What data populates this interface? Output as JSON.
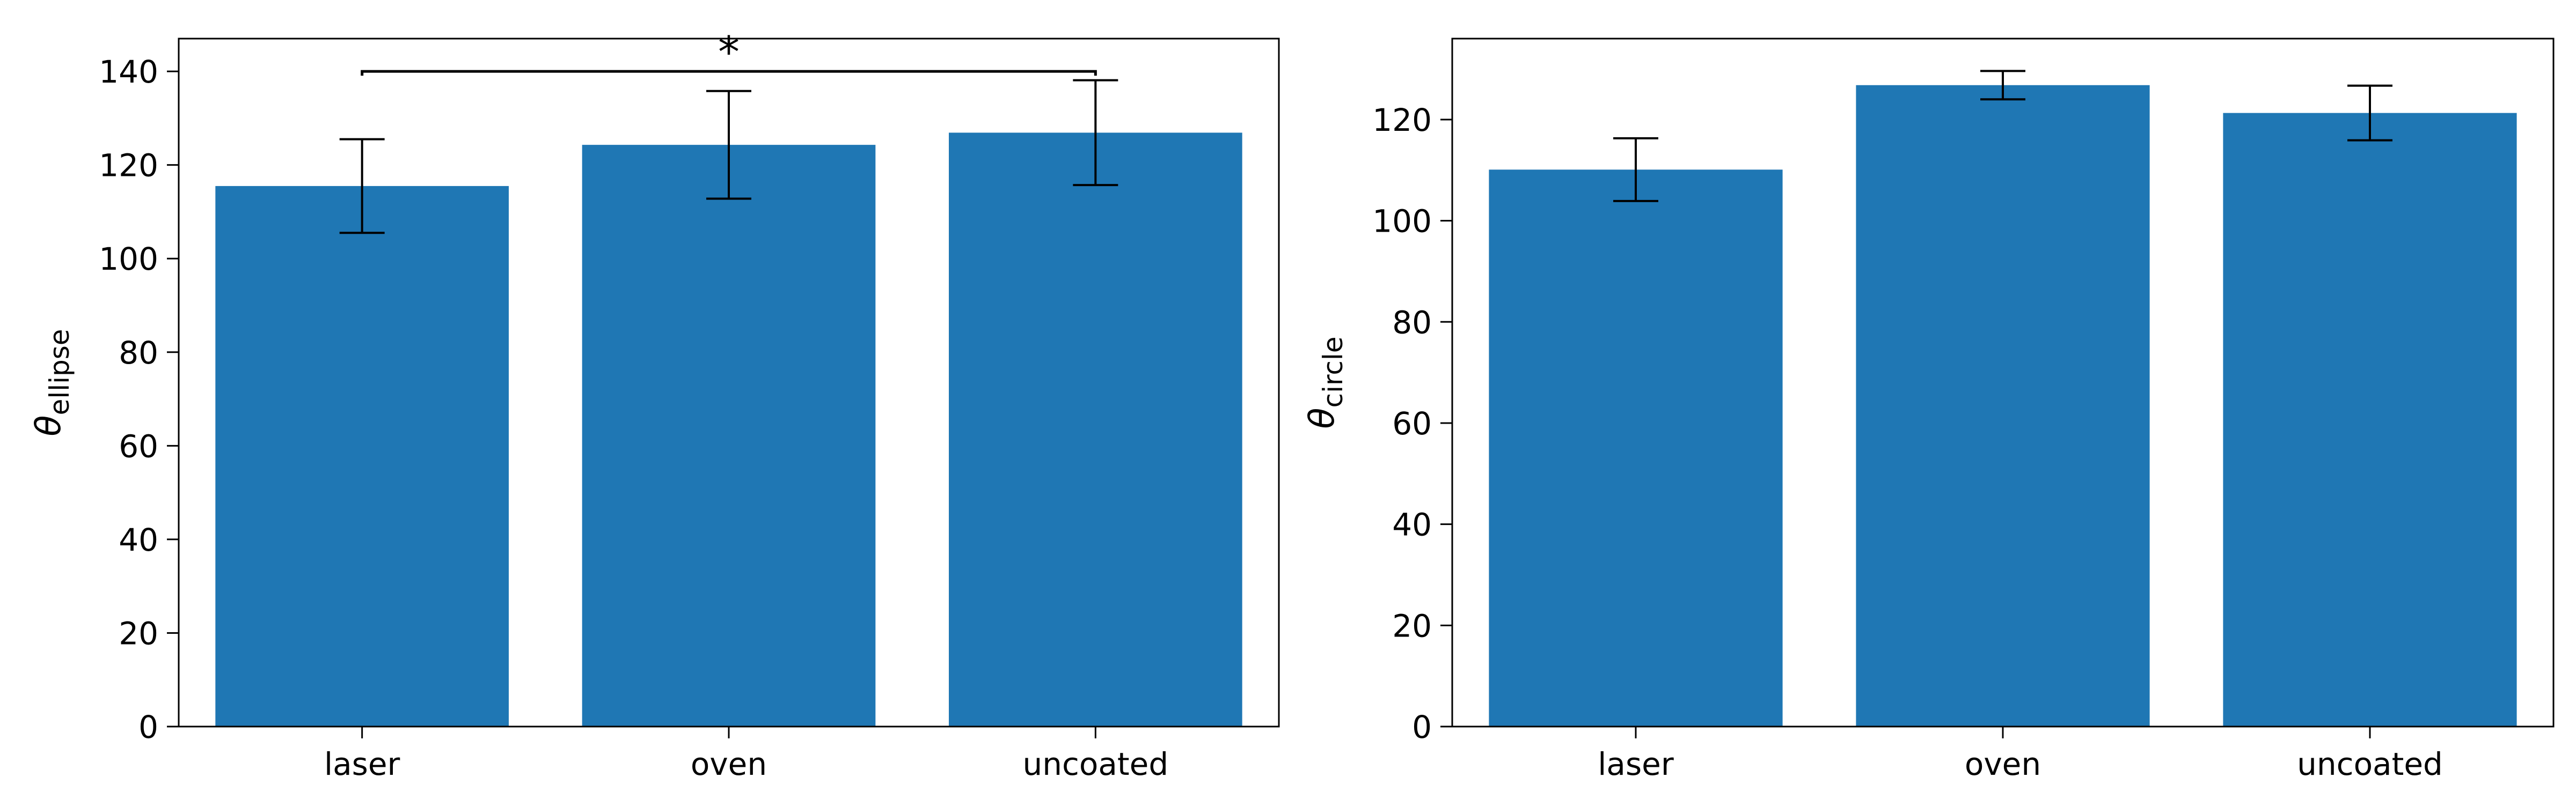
{
  "chart_data": [
    {
      "type": "bar",
      "categories": [
        "laser",
        "oven",
        "uncoated"
      ],
      "values": [
        115.5,
        124.3,
        126.9
      ],
      "errors": [
        10.0,
        11.5,
        11.2
      ],
      "ylabel": {
        "symbol": "θ",
        "subscript": "ellipse"
      },
      "ylim": [
        0,
        147
      ],
      "yticks": [
        0,
        20,
        40,
        60,
        80,
        100,
        120,
        140
      ],
      "significance": {
        "from": "laser",
        "to": "uncoated",
        "value": 140,
        "label": "*"
      },
      "bar_color": "#1f77b4",
      "grid": false
    },
    {
      "type": "bar",
      "categories": [
        "laser",
        "oven",
        "uncoated"
      ],
      "values": [
        110.1,
        126.8,
        121.3
      ],
      "errors": [
        6.2,
        2.8,
        5.4
      ],
      "ylabel": {
        "symbol": "θ",
        "subscript": "circle"
      },
      "ylim": [
        0,
        136
      ],
      "yticks": [
        0,
        20,
        40,
        60,
        80,
        100,
        120
      ],
      "bar_color": "#1f77b4",
      "grid": false
    }
  ]
}
